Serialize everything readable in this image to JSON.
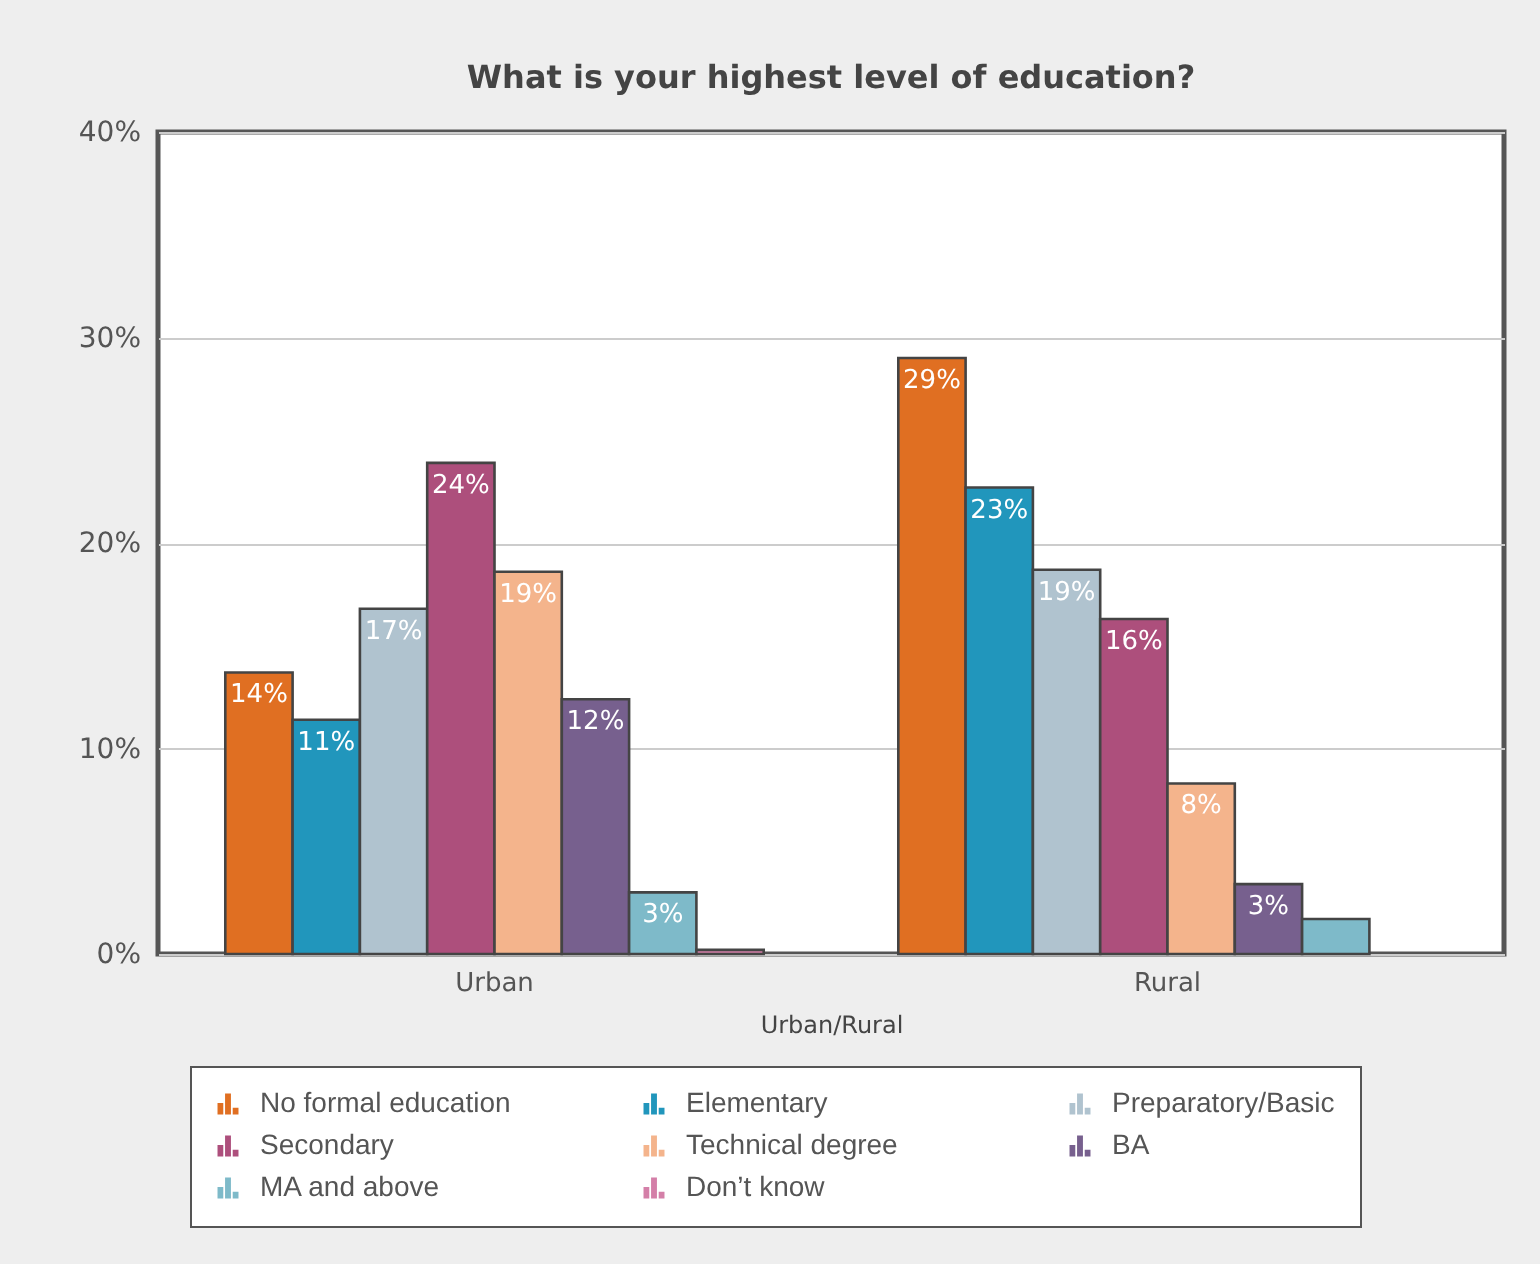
{
  "chart_data": {
    "type": "bar",
    "title": "What is your highest level of education?",
    "xlabel": "Urban/Rural",
    "categories": [
      "Urban",
      "Rural"
    ],
    "series": [
      {
        "name": "No formal education",
        "color": "#e06f22",
        "values": [
          13.7,
          29.0
        ],
        "value_labels": [
          "14%",
          "29%"
        ]
      },
      {
        "name": "Elementary",
        "color": "#2196bc",
        "values": [
          11.4,
          22.7
        ],
        "value_labels": [
          "11%",
          "23%"
        ]
      },
      {
        "name": "Preparatory/Basic",
        "color": "#b0c3cf",
        "values": [
          16.8,
          18.7
        ],
        "value_labels": [
          "17%",
          "19%"
        ]
      },
      {
        "name": "Secondary",
        "color": "#ad4f7c",
        "values": [
          23.9,
          16.3
        ],
        "value_labels": [
          "24%",
          "16%"
        ]
      },
      {
        "name": "Technical degree",
        "color": "#f4b48c",
        "values": [
          18.6,
          8.3
        ],
        "value_labels": [
          "19%",
          "8%"
        ]
      },
      {
        "name": "BA",
        "color": "#77608e",
        "values": [
          12.4,
          3.4
        ],
        "value_labels": [
          "12%",
          "3%"
        ]
      },
      {
        "name": "MA and above",
        "color": "#7ebac9",
        "values": [
          3.0,
          1.7
        ],
        "value_labels": [
          "3%",
          null
        ]
      },
      {
        "name": "Don’t know",
        "color": "#d47fa8",
        "values": [
          0.2,
          null
        ],
        "value_labels": [
          null,
          null
        ]
      }
    ],
    "ylim": [
      0,
      40
    ],
    "yticks": [
      {
        "value": 0,
        "label": "0%"
      },
      {
        "value": 10,
        "label": "10%"
      },
      {
        "value": 20,
        "label": "20%"
      },
      {
        "value": 30,
        "label": "30%"
      },
      {
        "value": 40,
        "label": "40%"
      }
    ],
    "grid": "y",
    "legend": "bottom"
  }
}
